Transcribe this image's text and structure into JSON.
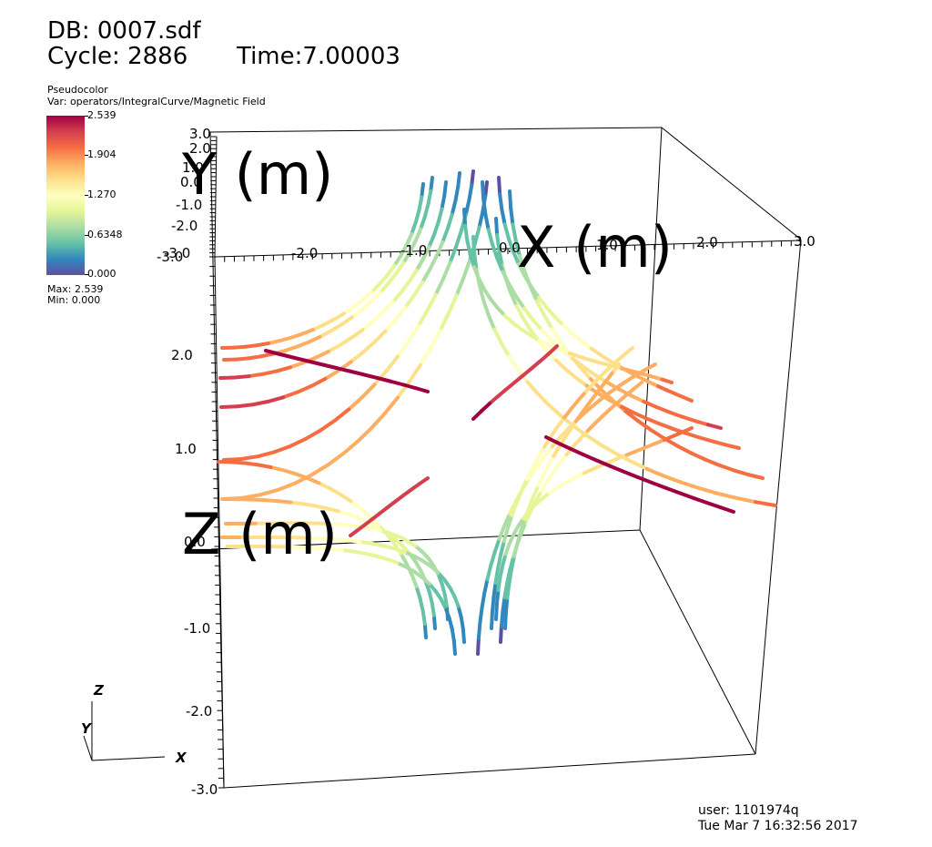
{
  "header": {
    "db": "DB: 0007.sdf",
    "cycle": "Cycle: 2886",
    "time": "Time:7.00003"
  },
  "legend": {
    "plot_type": "Pseudocolor",
    "var": "Var: operators/IntegralCurve/Magnetic Field",
    "ticks": [
      "2.539",
      "1.904",
      "1.270",
      "0.6348",
      "0.000"
    ],
    "max": "Max:  2.539",
    "min": "Min:  0.000",
    "colormap": [
      "#5e4fa2",
      "#3288bd",
      "#66c2a5",
      "#abdda4",
      "#e6f598",
      "#ffffbf",
      "#fee08b",
      "#fdae61",
      "#f46d43",
      "#d53e4f",
      "#9e0142"
    ]
  },
  "footer": {
    "user": "user: 1101974q",
    "date": "Tue Mar  7 16:32:56 2017"
  },
  "chart_data": {
    "type": "3d streamlines",
    "xlabel": "X (m)",
    "ylabel": "Y (m)",
    "zlabel": "Z (m)",
    "x_ticks": [
      "-3.0",
      "-2.0",
      "-1.0",
      "0.0",
      "1.0",
      "2.0",
      "3.0"
    ],
    "y_ticks": [
      "3.0",
      "2.0",
      "1.0",
      "0.0",
      "-1.0",
      "-2.0",
      "-3.0"
    ],
    "z_ticks": [
      "2.0",
      "1.0",
      "0.0",
      "-1.0",
      "-2.0",
      "-3.0"
    ],
    "xlim": [
      -3.0,
      3.0
    ],
    "ylim": [
      -3.0,
      3.0
    ],
    "zlim": [
      -3.0,
      3.0
    ],
    "triad": {
      "z": "Z",
      "y": "Y",
      "x": "X"
    },
    "color_range": [
      0.0,
      2.539
    ]
  }
}
